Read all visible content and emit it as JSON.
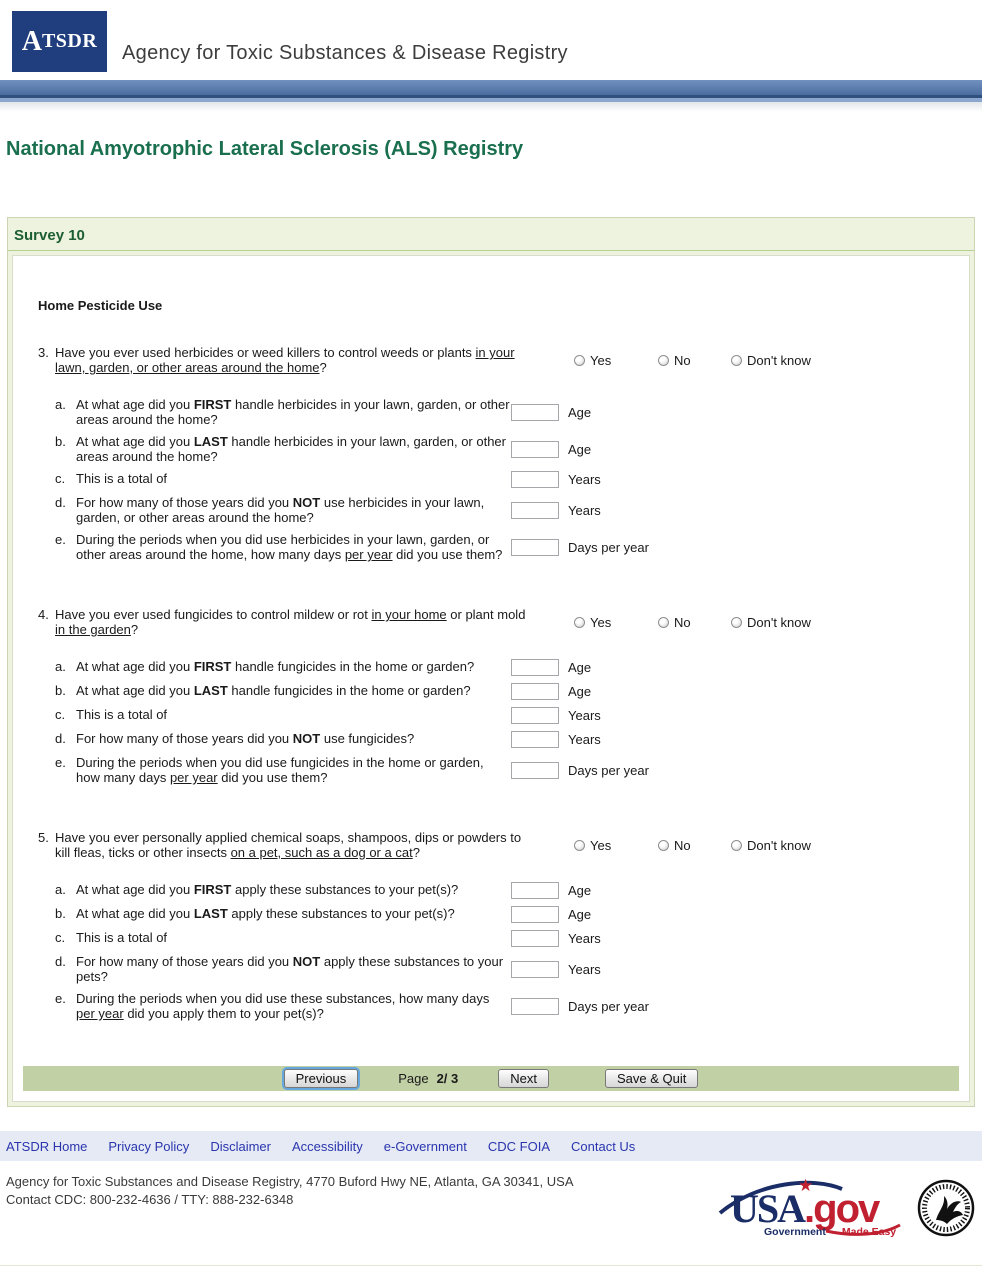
{
  "header": {
    "logo_text_big": "A",
    "logo_text_small": "TSDR",
    "agency_name": "Agency for Toxic Substances & Disease Registry"
  },
  "page_title": "National Amyotrophic Lateral Sclerosis (ALS) Registry",
  "survey": {
    "title": "Survey 10",
    "section_heading": "Home Pesticide Use",
    "radio_options": [
      "Yes",
      "No",
      "Don't know"
    ],
    "questions": [
      {
        "id": "3",
        "number": "3.",
        "segments": [
          {
            "t": "Have you ever used herbicides or weed killers to control weeds or plants "
          },
          {
            "t": "in your lawn, garden, or other areas around the home",
            "u": true
          },
          {
            "t": "?"
          }
        ],
        "subs": [
          {
            "letter": "a.",
            "segments": [
              {
                "t": "At what age did you "
              },
              {
                "t": "FIRST",
                "b": true
              },
              {
                "t": " handle herbicides in your lawn, garden, or other areas around the home?"
              }
            ],
            "unit": "Age"
          },
          {
            "letter": "b.",
            "segments": [
              {
                "t": "At what age did you "
              },
              {
                "t": "LAST",
                "b": true
              },
              {
                "t": " handle herbicides in your lawn, garden, or other areas around the home?"
              }
            ],
            "unit": "Age"
          },
          {
            "letter": "c.",
            "segments": [
              {
                "t": "This is a total of"
              }
            ],
            "unit": "Years"
          },
          {
            "letter": "d.",
            "segments": [
              {
                "t": "For how many of those years did you "
              },
              {
                "t": "NOT",
                "b": true
              },
              {
                "t": " use herbicides in your lawn, garden, or other areas around the home?"
              }
            ],
            "unit": "Years"
          },
          {
            "letter": "e.",
            "segments": [
              {
                "t": "During the periods when you did use herbicides in your lawn, garden, or other areas around the home, how many days "
              },
              {
                "t": "per year",
                "u": true
              },
              {
                "t": " did you use them?"
              }
            ],
            "unit": "Days per year"
          }
        ]
      },
      {
        "id": "4",
        "number": "4.",
        "segments": [
          {
            "t": "Have you ever used fungicides to control mildew or rot "
          },
          {
            "t": "in your home",
            "u": true
          },
          {
            "t": " or plant mold "
          },
          {
            "t": "in the garden",
            "u": true
          },
          {
            "t": "?"
          }
        ],
        "subs": [
          {
            "letter": "a.",
            "segments": [
              {
                "t": "At what age did you "
              },
              {
                "t": "FIRST",
                "b": true
              },
              {
                "t": " handle fungicides in the home or garden?"
              }
            ],
            "unit": "Age"
          },
          {
            "letter": "b.",
            "segments": [
              {
                "t": "At what age did you "
              },
              {
                "t": "LAST",
                "b": true
              },
              {
                "t": " handle fungicides in the home or garden?"
              }
            ],
            "unit": "Age"
          },
          {
            "letter": "c.",
            "segments": [
              {
                "t": "This is a total of"
              }
            ],
            "unit": "Years"
          },
          {
            "letter": "d.",
            "segments": [
              {
                "t": "For how many of those years did you "
              },
              {
                "t": "NOT",
                "b": true
              },
              {
                "t": " use fungicides?"
              }
            ],
            "unit": "Years"
          },
          {
            "letter": "e.",
            "segments": [
              {
                "t": "During the periods when you did use fungicides in the home or garden, how many days "
              },
              {
                "t": "per year",
                "u": true
              },
              {
                "t": " did you use them?"
              }
            ],
            "unit": "Days per year"
          }
        ]
      },
      {
        "id": "5",
        "number": "5.",
        "segments": [
          {
            "t": "Have you ever personally applied chemical soaps, shampoos, dips or powders to kill fleas, ticks or other insects "
          },
          {
            "t": "on a pet, such as a dog or a cat",
            "u": true
          },
          {
            "t": "?"
          }
        ],
        "subs": [
          {
            "letter": "a.",
            "segments": [
              {
                "t": "At what age did you "
              },
              {
                "t": "FIRST",
                "b": true
              },
              {
                "t": " apply these substances to your pet(s)?"
              }
            ],
            "unit": "Age"
          },
          {
            "letter": "b.",
            "segments": [
              {
                "t": "At what age did you "
              },
              {
                "t": "LAST",
                "b": true
              },
              {
                "t": " apply these substances to your pet(s)?"
              }
            ],
            "unit": "Age"
          },
          {
            "letter": "c.",
            "segments": [
              {
                "t": "This is a total of"
              }
            ],
            "unit": "Years"
          },
          {
            "letter": "d.",
            "segments": [
              {
                "t": "For how many of those years did you "
              },
              {
                "t": "NOT",
                "b": true
              },
              {
                "t": " apply these substances to your pets?"
              }
            ],
            "unit": "Years"
          },
          {
            "letter": "e.",
            "segments": [
              {
                "t": "During the periods when you did use these substances, how many days "
              },
              {
                "t": "per year",
                "u": true
              },
              {
                "t": " did you apply them to your pet(s)?"
              }
            ],
            "unit": "Days per year"
          }
        ]
      }
    ]
  },
  "nav": {
    "previous_label": "Previous",
    "page_label": "Page",
    "page_current": "2",
    "page_separator": "/",
    "page_total": "3",
    "next_label": "Next",
    "save_quit_label": "Save & Quit"
  },
  "footer": {
    "links": [
      "ATSDR Home",
      "Privacy Policy",
      "Disclaimer",
      "Accessibility",
      "e-Government",
      "CDC FOIA",
      "Contact Us"
    ],
    "address": "Agency for Toxic Substances and Disease Registry, 4770 Buford Hwy NE, Atlanta, GA 30341, USA",
    "contact": "Contact CDC: 800-232-4636 / TTY: 888-232-6348",
    "usagov": {
      "usa": "USA",
      "gov": ".gov",
      "star": "★",
      "tag_government": "Government",
      "tag_made_easy": "Made Easy"
    }
  },
  "icons": {
    "radio_unselected": "empty-circle",
    "usagov_star": "★",
    "hhs_seal": "hhs-eagle-seal"
  },
  "colors": {
    "header_navy": "#203d7d",
    "banner_blue_top": "#7191bf",
    "banner_blue_bottom": "#4a6da0",
    "title_green": "#1a6f4e",
    "survey_title_green": "#1c5e31",
    "survey_box_bg": "#eef3df",
    "nav_bar_green": "#c2d0a6",
    "focus_ring_blue": "#66a8dd",
    "footer_bar_bg": "#e5eaf5",
    "link_blue": "#2a35ae",
    "usagov_navy": "#1b2d66",
    "usagov_red": "#c02030"
  }
}
